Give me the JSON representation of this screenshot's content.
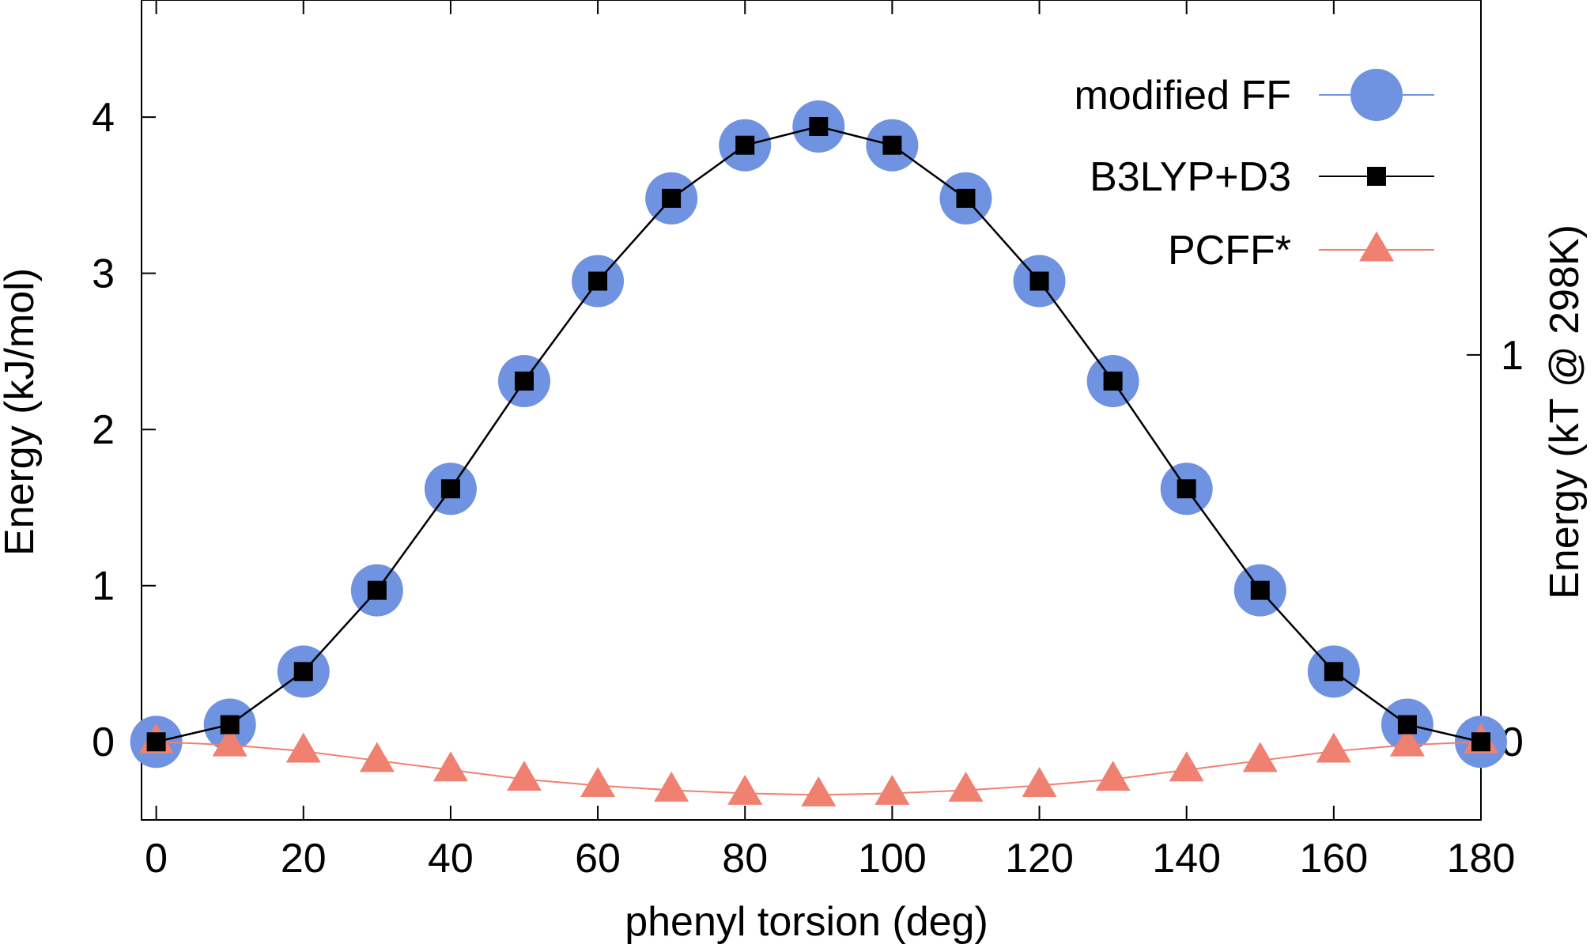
{
  "chart_data": {
    "type": "line",
    "xlabel": "phenyl torsion (deg)",
    "ylabel": "Energy (kJ/mol)",
    "y2label": "Energy (kT @ 298K)",
    "xlim": [
      -2,
      180
    ],
    "ylim": [
      -0.5,
      4.75
    ],
    "y2lim": [
      -0.2018,
      1.9171
    ],
    "xticks": [
      0,
      20,
      40,
      60,
      80,
      100,
      120,
      140,
      160,
      180
    ],
    "yticks": [
      0,
      1,
      2,
      3,
      4
    ],
    "y2ticks": [
      0,
      1
    ],
    "legend_position": "top-right",
    "x": [
      0,
      10,
      20,
      30,
      40,
      50,
      60,
      70,
      80,
      90,
      100,
      110,
      120,
      130,
      140,
      150,
      160,
      170,
      180
    ],
    "series": [
      {
        "name": "modified FF",
        "color": "#6f93e0",
        "marker": "circle",
        "values": [
          0.0,
          0.11,
          0.45,
          0.97,
          1.62,
          2.31,
          2.95,
          3.48,
          3.82,
          3.94,
          3.82,
          3.48,
          2.95,
          2.31,
          1.62,
          0.97,
          0.45,
          0.11,
          0.0
        ]
      },
      {
        "name": "B3LYP+D3",
        "color": "#000000",
        "marker": "square",
        "values": [
          0.0,
          0.11,
          0.45,
          0.97,
          1.62,
          2.31,
          2.95,
          3.48,
          3.82,
          3.94,
          3.82,
          3.48,
          2.95,
          2.31,
          1.62,
          0.97,
          0.45,
          0.11,
          0.0
        ]
      },
      {
        "name": "PCFF*",
        "color": "#f08070",
        "marker": "triangle",
        "values": [
          0.0,
          -0.02,
          -0.06,
          -0.12,
          -0.18,
          -0.24,
          -0.28,
          -0.31,
          -0.33,
          -0.34,
          -0.33,
          -0.31,
          -0.28,
          -0.24,
          -0.18,
          -0.12,
          -0.06,
          -0.02,
          0.0
        ]
      }
    ]
  }
}
